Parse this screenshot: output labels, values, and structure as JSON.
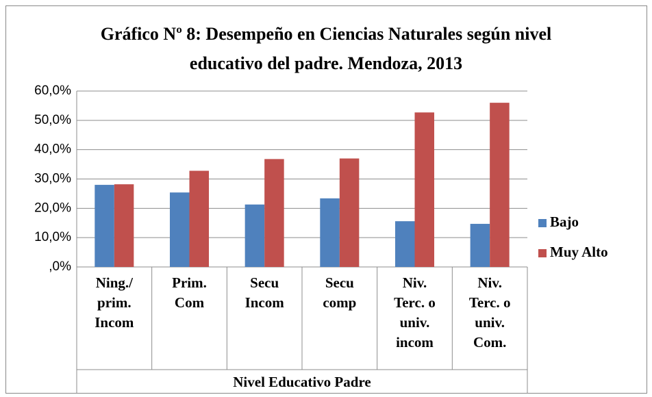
{
  "chart_data": {
    "type": "bar",
    "title": [
      "Gráfico Nº 8: Desempeño en Ciencias Naturales según nivel",
      "educativo del padre. Mendoza, 2013"
    ],
    "x_label": "Nivel Educativo Padre",
    "categories": [
      [
        "Ning./",
        "prim.",
        "Incom"
      ],
      [
        "Prim.",
        "Com"
      ],
      [
        "Secu",
        "Incom"
      ],
      [
        "Secu",
        "comp"
      ],
      [
        "Niv.",
        "Terc. o",
        "univ.",
        "incom"
      ],
      [
        "Niv.",
        "Terc. o",
        "univ.",
        "Com."
      ]
    ],
    "series": [
      {
        "name": "Bajo",
        "color": "#4f81bd",
        "values": [
          28.0,
          25.4,
          21.3,
          23.4,
          15.6,
          14.7
        ]
      },
      {
        "name": "Muy Alto",
        "color": "#c0504d",
        "values": [
          28.2,
          32.8,
          36.8,
          37.0,
          52.7,
          56.0
        ]
      }
    ],
    "ylim": [
      0,
      60
    ],
    "yticks": [
      {
        "value": 0,
        "label": ",0%"
      },
      {
        "value": 10,
        "label": "10,0%"
      },
      {
        "value": 20,
        "label": "20,0%"
      },
      {
        "value": 30,
        "label": "30,0%"
      },
      {
        "value": 40,
        "label": "40,0%"
      },
      {
        "value": 50,
        "label": "50,0%"
      },
      {
        "value": 60,
        "label": "60,0%"
      }
    ],
    "grid": true,
    "legend": "right"
  }
}
